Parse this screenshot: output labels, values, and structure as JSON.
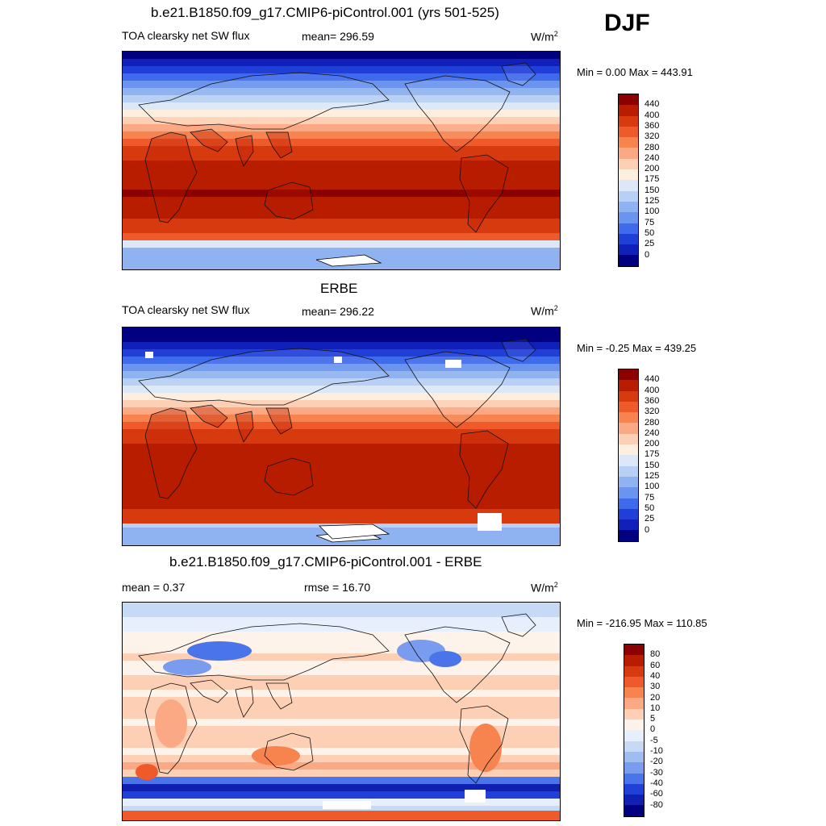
{
  "season": "DJF",
  "panels": [
    {
      "title": "b.e21.B1850.f09_g17.CMIP6-piControl.001 (yrs 501-525)",
      "left_label": "TOA clearsky net SW flux",
      "mid_label": "mean= 296.59",
      "units": "W/m",
      "units_sup": "2",
      "minmax": "Min =   0.00 Max = 443.91",
      "kind": "abs",
      "cbar_labels": [
        "440",
        "400",
        "360",
        "320",
        "280",
        "240",
        "200",
        "175",
        "150",
        "125",
        "100",
        "75",
        "50",
        "25",
        "0"
      ],
      "cbar_colors": [
        "#8b0000",
        "#b81d00",
        "#d83a10",
        "#ee5a2a",
        "#f7834f",
        "#fba985",
        "#fdd0b5",
        "#fdeedd",
        "#dce8f8",
        "#b8d0f5",
        "#8fb2f0",
        "#6a94ee",
        "#3f6aec",
        "#1f3fd6",
        "#1020b8",
        "#000080"
      ]
    },
    {
      "title": "ERBE",
      "left_label": "TOA clearsky net SW flux",
      "mid_label": "mean= 296.22",
      "units": "W/m",
      "units_sup": "2",
      "minmax": "Min =  -0.25 Max = 439.25",
      "kind": "abs",
      "cbar_labels": [
        "440",
        "400",
        "360",
        "320",
        "280",
        "240",
        "200",
        "175",
        "150",
        "125",
        "100",
        "75",
        "50",
        "25",
        "0"
      ],
      "cbar_colors": [
        "#8b0000",
        "#b81d00",
        "#d83a10",
        "#ee5a2a",
        "#f7834f",
        "#fba985",
        "#fdd0b5",
        "#fdeedd",
        "#dce8f8",
        "#b8d0f5",
        "#8fb2f0",
        "#6a94ee",
        "#3f6aec",
        "#1f3fd6",
        "#1020b8",
        "#000080"
      ]
    },
    {
      "title": "b.e21.B1850.f09_g17.CMIP6-piControl.001 - ERBE",
      "left_label": "mean =   0.37",
      "mid_label": "rmse =  16.70",
      "units": "W/m",
      "units_sup": "2",
      "minmax": "Min = -216.95 Max = 110.85",
      "kind": "diff",
      "cbar_labels": [
        "80",
        "60",
        "40",
        "30",
        "20",
        "10",
        "5",
        "0",
        "-5",
        "-10",
        "-20",
        "-30",
        "-40",
        "-60",
        "-80"
      ],
      "cbar_colors": [
        "#8b0000",
        "#b81d00",
        "#d83a10",
        "#ee5a2a",
        "#f7834f",
        "#fba985",
        "#fdd0b5",
        "#fdf3ea",
        "#e6effb",
        "#c6d9f5",
        "#9fbdf1",
        "#7a9cee",
        "#4a74ea",
        "#2040d8",
        "#1020b0",
        "#000080"
      ]
    }
  ]
}
